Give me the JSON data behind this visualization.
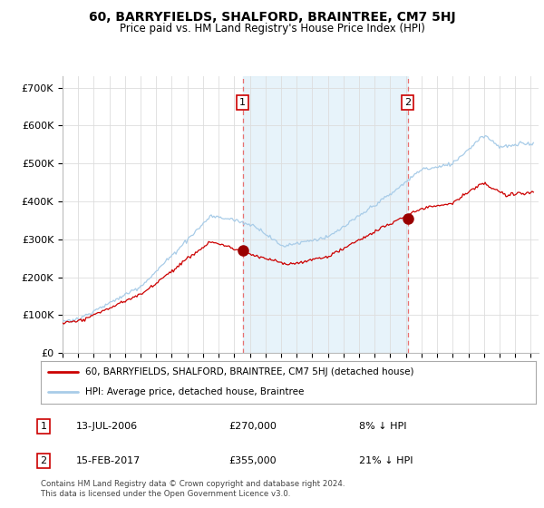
{
  "title": "60, BARRYFIELDS, SHALFORD, BRAINTREE, CM7 5HJ",
  "subtitle": "Price paid vs. HM Land Registry's House Price Index (HPI)",
  "ylabel_ticks": [
    "£0",
    "£100K",
    "£200K",
    "£300K",
    "£400K",
    "£500K",
    "£600K",
    "£700K"
  ],
  "ytick_vals": [
    0,
    100000,
    200000,
    300000,
    400000,
    500000,
    600000,
    700000
  ],
  "ylim": [
    0,
    730000
  ],
  "sale1_date_x": 2006.54,
  "sale1_price": 270000,
  "sale1_label": "1",
  "sale2_date_x": 2017.12,
  "sale2_price": 355000,
  "sale2_label": "2",
  "legend_line1": "60, BARRYFIELDS, SHALFORD, BRAINTREE, CM7 5HJ (detached house)",
  "legend_line2": "HPI: Average price, detached house, Braintree",
  "table_row1": [
    "1",
    "13-JUL-2006",
    "£270,000",
    "8% ↓ HPI"
  ],
  "table_row2": [
    "2",
    "15-FEB-2017",
    "£355,000",
    "21% ↓ HPI"
  ],
  "footer": "Contains HM Land Registry data © Crown copyright and database right 2024.\nThis data is licensed under the Open Government Licence v3.0.",
  "hpi_color": "#a8cce8",
  "hpi_fill_color": "#ddeef8",
  "price_color": "#cc0000",
  "sale_marker_color": "#990000",
  "vline_color": "#e87070",
  "grid_color": "#dddddd",
  "bg_color": "#ffffff",
  "xlim_start": 1995.0,
  "xlim_end": 2025.5
}
